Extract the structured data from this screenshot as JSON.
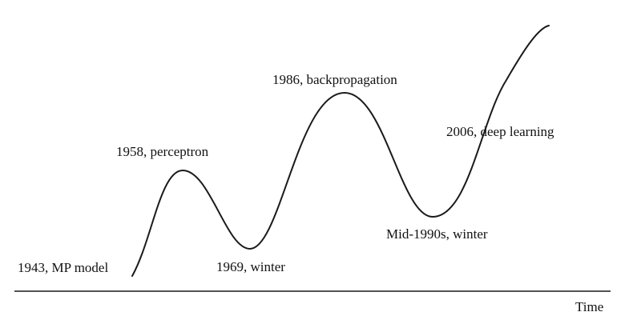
{
  "diagram": {
    "axis_label": "Time",
    "milestones": [
      {
        "year": "1943",
        "event": "MP model",
        "text": "1943, MP model"
      },
      {
        "year": "1958",
        "event": "perceptron",
        "text": "1958, perceptron"
      },
      {
        "year": "1969",
        "event": "winter",
        "text": "1969, winter"
      },
      {
        "year": "1986",
        "event": "backpropagation",
        "text": "1986, backpropagation"
      },
      {
        "year": "Mid-1990s",
        "event": "winter",
        "text": "Mid-1990s, winter"
      },
      {
        "year": "2006",
        "event": "deep learning",
        "text": "2006, deep learning"
      }
    ],
    "colors": {
      "line": "#1a1a1a",
      "text": "#111111",
      "background": "#ffffff"
    }
  }
}
